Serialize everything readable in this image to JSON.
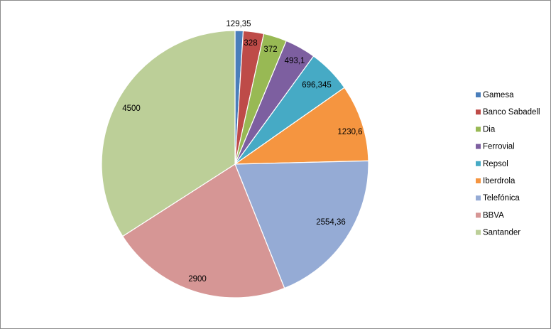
{
  "chart_data": {
    "type": "pie",
    "title": "",
    "legend_position": "right",
    "slices": [
      {
        "name": "Gamesa",
        "value": 129.35,
        "label": "129,35",
        "color": "#4a7ebb"
      },
      {
        "name": "Banco Sabadell",
        "value": 328,
        "label": "328",
        "color": "#be4b48"
      },
      {
        "name": "Dia",
        "value": 372,
        "label": "372",
        "color": "#98b954"
      },
      {
        "name": "Ferrovial",
        "value": 493.1,
        "label": "493,1",
        "color": "#7d5fa0"
      },
      {
        "name": "Repsol",
        "value": 696.345,
        "label": "696,345",
        "color": "#46aac5"
      },
      {
        "name": "Iberdrola",
        "value": 1230.6,
        "label": "1230,6",
        "color": "#f59540"
      },
      {
        "name": "Telefónica",
        "value": 2554.36,
        "label": "2554,36",
        "color": "#95abd5"
      },
      {
        "name": "BBVA",
        "value": 2900,
        "label": "2900",
        "color": "#d69695"
      },
      {
        "name": "Santander",
        "value": 4500,
        "label": "4500",
        "color": "#bccf98"
      }
    ]
  }
}
